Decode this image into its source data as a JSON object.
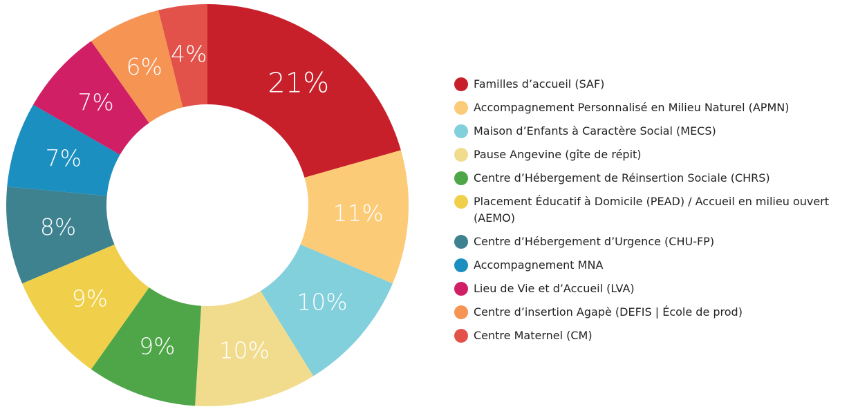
{
  "chart_data": {
    "type": "donut",
    "categories": [
      "Familles d’accueil (SAF)",
      "Accompagnement Personnalisé en Milieu Naturel (APMN)",
      "Maison d’Enfants à Caractère Social (MECS)",
      "Pause Angevine (gîte de répit)",
      "Centre d’Hébergement de Réinsertion Sociale (CHRS)",
      "Placement Éducatif à Domicile (PEAD) / Accueil en milieu ouvert (AEMO)",
      "Centre d’Hébergement d’Urgence (CHU-FP)",
      "Accompagnement MNA",
      "Lieu de Vie et d’Accueil (LVA)",
      "Centre d’insertion Agapè (DEFIS | École de prod)",
      "Centre Maternel (CM)"
    ],
    "values": [
      21,
      11,
      10,
      10,
      9,
      9,
      8,
      7,
      7,
      6,
      4
    ],
    "value_labels": [
      "21%",
      "11%",
      "10%",
      "10%",
      "9%",
      "9%",
      "8%",
      "7%",
      "7%",
      "6%",
      "4%"
    ],
    "colors": [
      "#c8202a",
      "#fccb78",
      "#82d0dc",
      "#f1dc8e",
      "#4ea648",
      "#f0d04a",
      "#3e8290",
      "#1a8fc0",
      "#d11f66",
      "#f69454",
      "#e2524a"
    ],
    "legend": "right"
  }
}
